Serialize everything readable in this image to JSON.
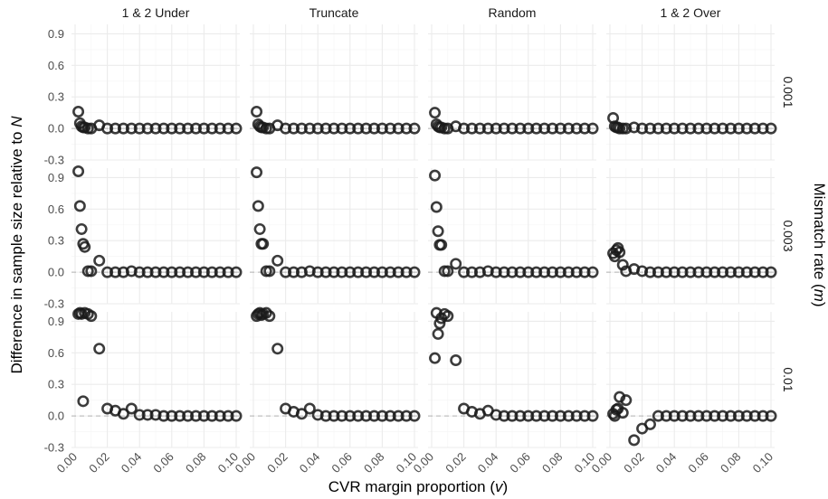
{
  "chart_data": {
    "type": "scatter",
    "title": "",
    "xlabel": "CVR margin proportion",
    "xlabel_symbol": "v",
    "ylabel": "Difference in sample size relative to",
    "ylabel_symbol": "N",
    "row_label": "Mismatch rate",
    "row_label_symbol": "m",
    "columns": [
      "1 & 2 Under",
      "Truncate",
      "Random",
      "1 & 2 Over"
    ],
    "rows": [
      "0.001",
      "0.003",
      "0.01"
    ],
    "xlim": [
      0,
      0.1
    ],
    "x_ticks": [
      0.0,
      0.02,
      0.04,
      0.06,
      0.08,
      0.1
    ],
    "x_tick_labels": [
      "0.00",
      "0.02",
      "0.04",
      "0.06",
      "0.08",
      "0.10"
    ],
    "ylim": [
      -0.3,
      0.99
    ],
    "y_ticks": [
      -0.3,
      0.0,
      0.3,
      0.6,
      0.9
    ],
    "y_tick_labels": [
      "-0.3",
      "0.0",
      "0.3",
      "0.6",
      "0.9"
    ],
    "x": [
      0.002,
      0.003,
      0.004,
      0.005,
      0.006,
      0.008,
      0.01,
      0.015,
      0.02,
      0.025,
      0.03,
      0.035,
      0.04,
      0.045,
      0.05,
      0.055,
      0.06,
      0.065,
      0.07,
      0.075,
      0.08,
      0.085,
      0.09,
      0.095,
      0.1
    ],
    "panels": [
      {
        "row": 0,
        "col": 0,
        "y": [
          0.16,
          0.05,
          0.02,
          0.01,
          0.01,
          0,
          0,
          0.03,
          0,
          0,
          0,
          0,
          0,
          0,
          0,
          0,
          0,
          0,
          0,
          0,
          0,
          0,
          0,
          0,
          0
        ]
      },
      {
        "row": 0,
        "col": 1,
        "y": [
          0.16,
          0.04,
          0.02,
          0.01,
          0.01,
          0,
          0,
          0.03,
          0,
          0,
          0,
          0,
          0,
          0,
          0,
          0,
          0,
          0,
          0,
          0,
          0,
          0,
          0,
          0,
          0
        ]
      },
      {
        "row": 0,
        "col": 2,
        "y": [
          0.15,
          0.04,
          0.02,
          0.01,
          0.01,
          0,
          0,
          0.02,
          0,
          0,
          0,
          0,
          0,
          0,
          0,
          0,
          0,
          0,
          0,
          0,
          0,
          0,
          0,
          0,
          0
        ]
      },
      {
        "row": 0,
        "col": 3,
        "y": [
          0.1,
          0.02,
          0.01,
          0.01,
          0,
          0,
          0,
          0.01,
          0,
          0,
          0,
          0,
          0,
          0,
          0,
          0,
          0,
          0,
          0,
          0,
          0,
          0,
          0,
          0,
          0
        ]
      },
      {
        "row": 1,
        "col": 0,
        "y": [
          0.96,
          0.63,
          0.41,
          0.27,
          0.24,
          0.01,
          0.01,
          0.11,
          0,
          0,
          0,
          0.01,
          0,
          0,
          0,
          0,
          0,
          0,
          0,
          0,
          0,
          0,
          0,
          0,
          0
        ]
      },
      {
        "row": 1,
        "col": 1,
        "y": [
          0.95,
          0.63,
          0.41,
          0.27,
          0.27,
          0.01,
          0.01,
          0.11,
          0,
          0,
          0,
          0.01,
          0,
          0,
          0,
          0,
          0,
          0,
          0,
          0,
          0,
          0,
          0,
          0,
          0
        ]
      },
      {
        "row": 1,
        "col": 2,
        "y": [
          0.92,
          0.62,
          0.39,
          0.26,
          0.26,
          0.01,
          0.01,
          0.08,
          0,
          0,
          0,
          0.01,
          0,
          0,
          0,
          0,
          0,
          0,
          0,
          0,
          0,
          0,
          0,
          0,
          0
        ]
      },
      {
        "row": 1,
        "col": 3,
        "y": [
          0.18,
          0.15,
          0.21,
          0.23,
          0.19,
          0.07,
          0.01,
          0.03,
          0.01,
          0,
          0,
          0,
          0,
          0,
          0,
          0,
          0,
          0,
          0,
          0,
          0,
          0,
          0,
          0,
          0
        ]
      },
      {
        "row": 2,
        "col": 0,
        "y": [
          0.97,
          0.98,
          0.97,
          0.14,
          0.98,
          0.97,
          0.95,
          0.64,
          0.07,
          0.05,
          0.02,
          0.07,
          0.01,
          0.01,
          0.01,
          0,
          0,
          0,
          0,
          0,
          0,
          0,
          0,
          0,
          0
        ]
      },
      {
        "row": 2,
        "col": 1,
        "y": [
          0.95,
          0.97,
          0.98,
          0.96,
          0.97,
          0.98,
          0.95,
          0.64,
          0.07,
          0.04,
          0.02,
          0.07,
          0.01,
          0,
          0,
          0,
          0,
          0,
          0,
          0,
          0,
          0,
          0,
          0,
          0
        ]
      },
      {
        "row": 2,
        "col": 2,
        "y": [
          0.55,
          0.98,
          0.78,
          0.88,
          0.93,
          0.97,
          0.95,
          0.53,
          0.07,
          0.04,
          0.02,
          0.05,
          0.01,
          0,
          0,
          0,
          0,
          0,
          0,
          0,
          0,
          0,
          0,
          0,
          0
        ]
      },
      {
        "row": 2,
        "col": 3,
        "y": [
          0.02,
          0,
          0.06,
          0.07,
          0.18,
          0.03,
          0.15,
          -0.23,
          -0.12,
          -0.08,
          0,
          0,
          0,
          0,
          0,
          0,
          0,
          0,
          0,
          0,
          0,
          0,
          0,
          0,
          0
        ]
      }
    ]
  }
}
